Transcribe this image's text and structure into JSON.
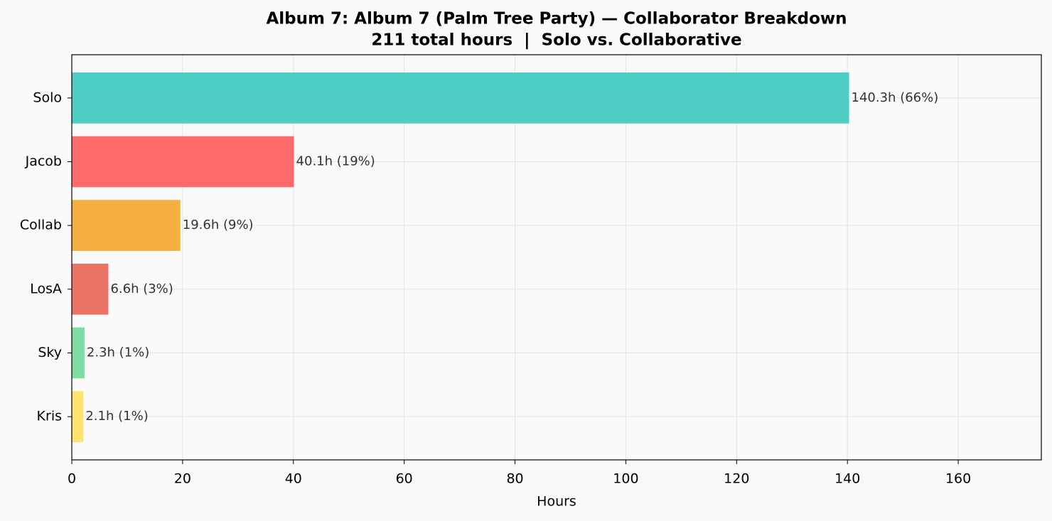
{
  "chart_data": {
    "type": "barh",
    "title": "Album 7: Album 7 (Palm Tree Party) — Collaborator Breakdown",
    "subtitle": "211 total hours  |  Solo vs. Collaborative",
    "x_label": "Hours",
    "categories": [
      "Solo",
      "Jacob",
      "Collab",
      "LosA",
      "Sky",
      "Kris"
    ],
    "values": [
      140.3,
      40.1,
      19.6,
      6.6,
      2.3,
      2.1
    ],
    "value_labels": [
      "140.3h (66%)",
      "40.1h (19%)",
      "19.6h (9%)",
      "6.6h (3%)",
      "2.3h (1%)",
      "2.1h (1%)"
    ],
    "colors": [
      "#4ecdc4",
      "#ff6b6b",
      "#f6b042",
      "#ec7467",
      "#7fdca4",
      "#ffe36e"
    ],
    "xlim": [
      0,
      175
    ],
    "xticks": [
      0,
      20,
      40,
      60,
      80,
      100,
      120,
      140,
      160
    ],
    "grid": true
  }
}
